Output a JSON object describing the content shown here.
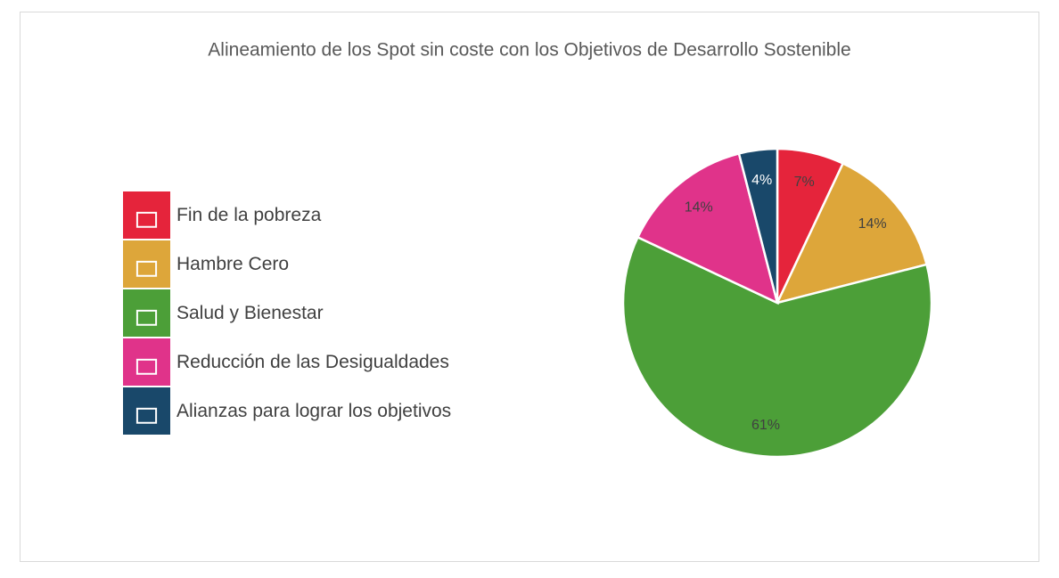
{
  "chart_data": {
    "type": "pie",
    "title": "Alineamiento de los Spot sin coste con los Objetivos de Desarrollo Sostenible",
    "categories": [
      "Fin de la pobreza",
      "Hambre Cero",
      "Salud y Bienestar",
      "Reducción de las Desigualdades",
      "Alianzas para lograr los objetivos"
    ],
    "values": [
      7,
      14,
      61,
      14,
      4
    ],
    "value_labels": [
      "7%",
      "14%",
      "61%",
      "14%",
      "4%"
    ],
    "colors": [
      "#e5243b",
      "#dda63a",
      "#4c9f38",
      "#e0338a",
      "#19486a"
    ],
    "legend": "left"
  }
}
